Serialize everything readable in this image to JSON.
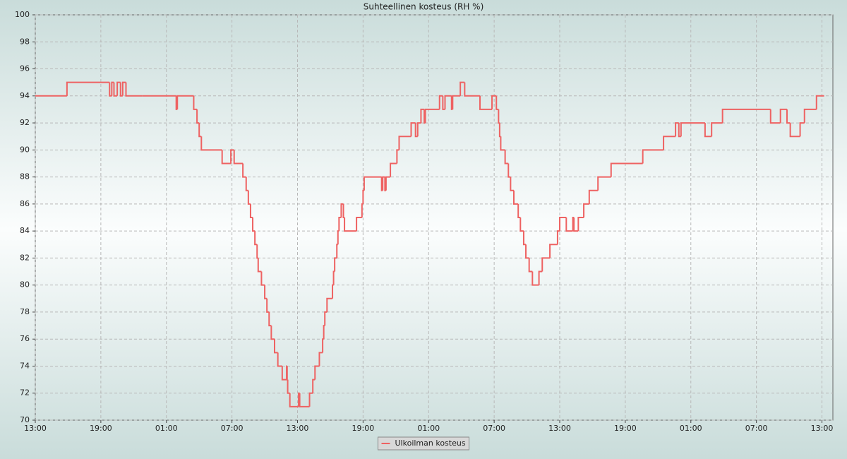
{
  "chart_data": {
    "type": "step-line",
    "title": "Suhteellinen kosteus (RH %)",
    "x": [
      0,
      2.9,
      6.8,
      7.0,
      7.2,
      7.5,
      7.8,
      8.0,
      8.3,
      9.8,
      12.9,
      13.0,
      14.5,
      14.8,
      15.0,
      15.2,
      17.1,
      17.9,
      18.2,
      19.0,
      19.3,
      19.5,
      19.7,
      19.9,
      20.1,
      20.3,
      20.4,
      20.7,
      21.0,
      21.2,
      21.4,
      21.6,
      21.9,
      22.2,
      22.6,
      23.0,
      23.05,
      23.1,
      23.3,
      24.1,
      24.2,
      25.1,
      25.4,
      25.6,
      26.0,
      26.3,
      26.4,
      26.5,
      26.7,
      27.2,
      27.3,
      27.4,
      27.6,
      27.7,
      27.8,
      28.0,
      28.2,
      28.3,
      29.4,
      29.9,
      30.0,
      30.1,
      31.7,
      31.8,
      32.0,
      32.1,
      32.5,
      33.1,
      33.3,
      34.4,
      34.8,
      35.0,
      35.3,
      35.6,
      35.7,
      37.0,
      37.3,
      37.5,
      38.1,
      38.2,
      38.9,
      39.3,
      40.7,
      41.8,
      42.2,
      42.4,
      42.5,
      42.6,
      43.0,
      43.3,
      43.5,
      43.8,
      44.2,
      44.4,
      44.7,
      44.9,
      45.2,
      45.5,
      46.1,
      46.4,
      47.1,
      47.8,
      48.0,
      48.6,
      49.2,
      49.3,
      49.7,
      50.2,
      50.7,
      51.5,
      52.7,
      55.6,
      57.5,
      58.6,
      58.9,
      59.1,
      61.3,
      61.9,
      62.9,
      67.3,
      68.2,
      68.8,
      69.1,
      70.0,
      70.4,
      71.5,
      72.2
    ],
    "series": [
      {
        "name": "Ulkoilman kosteus",
        "color": "#ee6262",
        "values": [
          94,
          95,
          94,
          95,
          94,
          95,
          94,
          95,
          94,
          94,
          93,
          94,
          93,
          92,
          91,
          90,
          89,
          90,
          89,
          88,
          87,
          86,
          85,
          84,
          83,
          82,
          81,
          80,
          79,
          78,
          77,
          76,
          75,
          74,
          73,
          74,
          73,
          72,
          71,
          72,
          71,
          72,
          73,
          74,
          75,
          76,
          77,
          78,
          79,
          80,
          81,
          82,
          83,
          84,
          85,
          86,
          85,
          84,
          85,
          86,
          87,
          88,
          87,
          88,
          87,
          88,
          89,
          90,
          91,
          92,
          91,
          92,
          93,
          92,
          93,
          94,
          93,
          94,
          93,
          94,
          95,
          94,
          93,
          94,
          93,
          92,
          91,
          90,
          89,
          88,
          87,
          86,
          85,
          84,
          83,
          82,
          81,
          80,
          81,
          82,
          83,
          84,
          85,
          84,
          85,
          84,
          85,
          86,
          87,
          88,
          89,
          90,
          91,
          92,
          91,
          92,
          91,
          92,
          93,
          92,
          93,
          92,
          91,
          92,
          93,
          94,
          94
        ]
      }
    ],
    "xlim": [
      0,
      73
    ],
    "xticks": [
      {
        "value": 0,
        "label": "13:00"
      },
      {
        "value": 6,
        "label": "19:00"
      },
      {
        "value": 12,
        "label": "01:00"
      },
      {
        "value": 18,
        "label": "07:00"
      },
      {
        "value": 24,
        "label": "13:00"
      },
      {
        "value": 30,
        "label": "19:00"
      },
      {
        "value": 36,
        "label": "01:00"
      },
      {
        "value": 42,
        "label": "07:00"
      },
      {
        "value": 48,
        "label": "13:00"
      },
      {
        "value": 54,
        "label": "19:00"
      },
      {
        "value": 60,
        "label": "01:00"
      },
      {
        "value": 66,
        "label": "07:00"
      },
      {
        "value": 72,
        "label": "13:00"
      }
    ],
    "ylim": [
      70,
      100
    ],
    "yticks": [
      70,
      72,
      74,
      76,
      78,
      80,
      82,
      84,
      86,
      88,
      90,
      92,
      94,
      96,
      98,
      100
    ],
    "grid": true,
    "legend": "bottom"
  }
}
